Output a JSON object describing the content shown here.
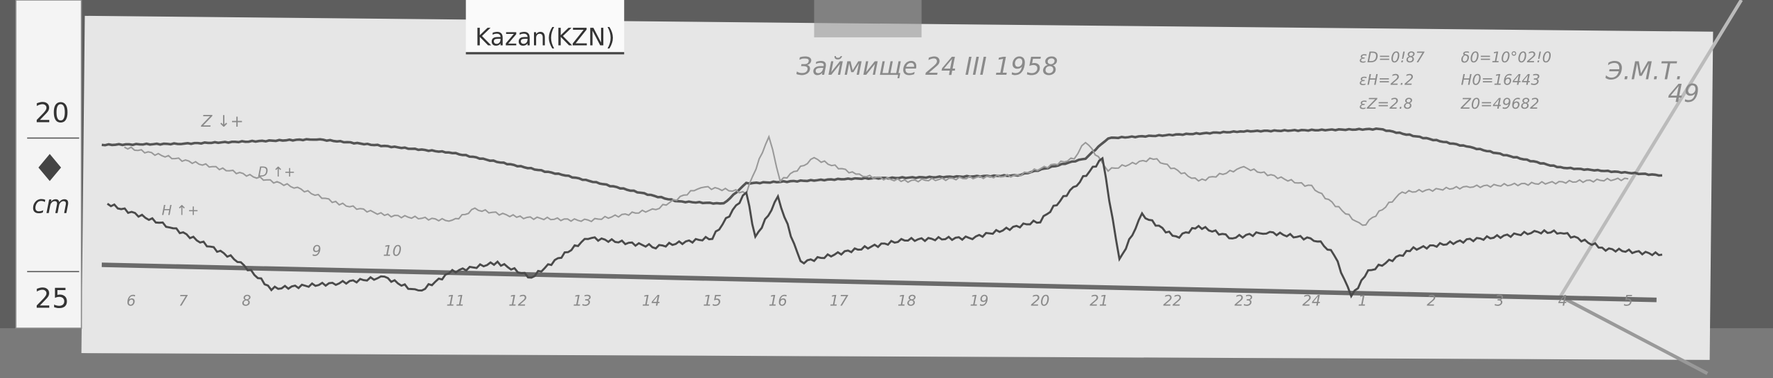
{
  "station_label": "Kazan(KZN)",
  "title": "Займище 24 III 1958",
  "observer_mark": "Э.М.Т.",
  "sheet_number": "49",
  "scale_values": [
    "εD=0!87",
    "εH=2.2",
    "εZ=2.8"
  ],
  "base_values": [
    "δ0=10°02!0",
    "H0=16443",
    "Z0=49682"
  ],
  "ruler": {
    "top": "20",
    "unit": "cm",
    "bottom": "25"
  },
  "trace_labels": {
    "z": "Z ↓+",
    "d": "D ↑+",
    "h": "H ↑+"
  },
  "hour_ticks": [
    "6",
    "7",
    "8",
    "9",
    "10",
    "11",
    "12",
    "13",
    "14",
    "15",
    "16",
    "17",
    "18",
    "19",
    "20",
    "21",
    "22",
    "23",
    "24",
    "1",
    "2",
    "3",
    "4",
    "5"
  ]
}
